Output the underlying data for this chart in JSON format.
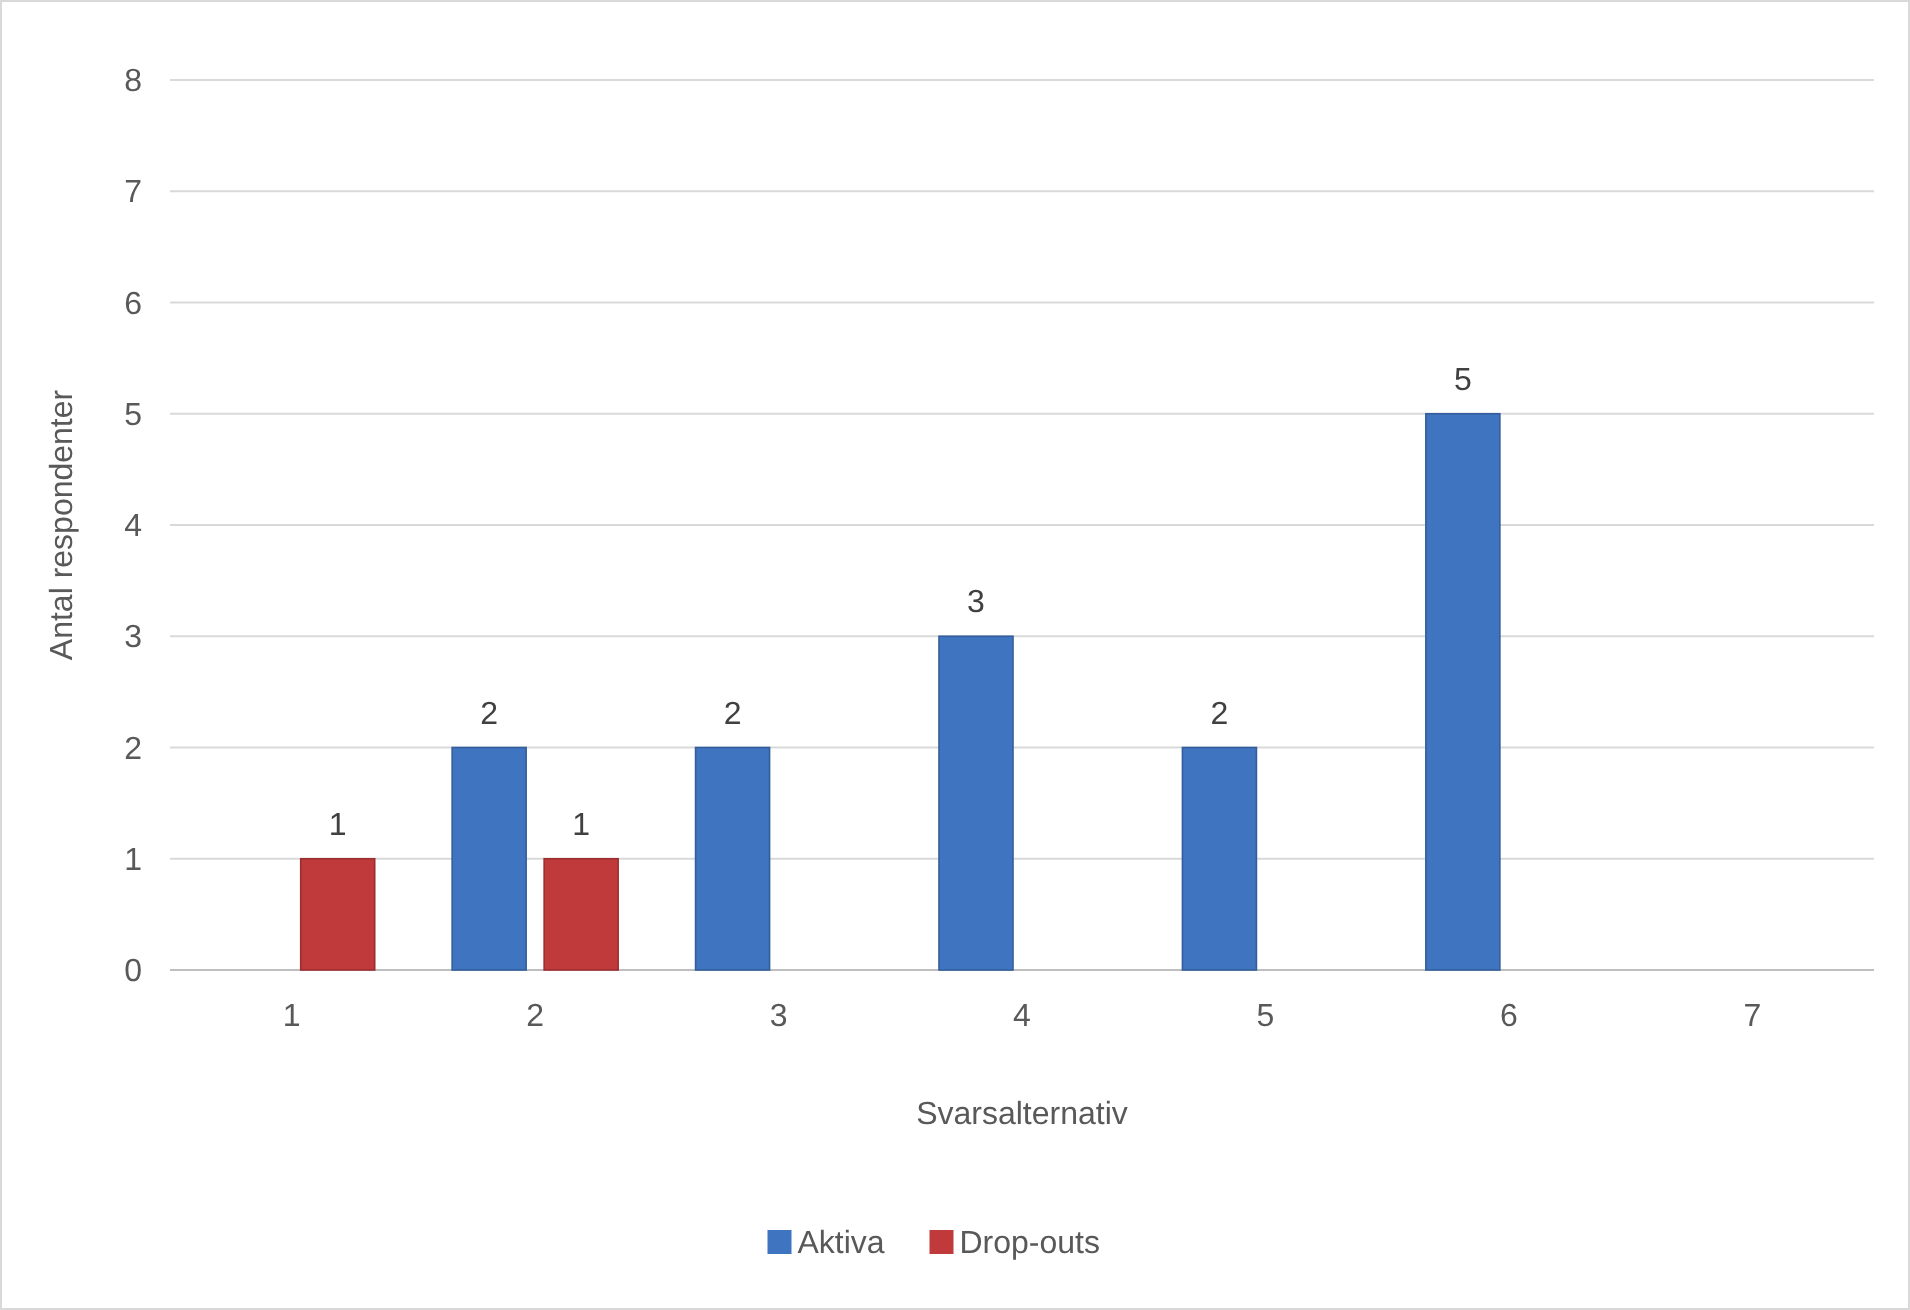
{
  "chart_data": {
    "type": "bar",
    "xlabel": "Svarsalternativ",
    "ylabel": "Antal respondenter",
    "categories": [
      "1",
      "2",
      "3",
      "4",
      "5",
      "6",
      "7"
    ],
    "series": [
      {
        "name": "Aktiva",
        "color": "#3f74c0",
        "values": [
          null,
          2,
          2,
          3,
          2,
          5,
          null
        ]
      },
      {
        "name": "Drop-outs",
        "color": "#c0393b",
        "values": [
          1,
          1,
          null,
          null,
          null,
          null,
          null
        ]
      }
    ],
    "ylim": [
      0,
      8
    ],
    "yticks": [
      0,
      1,
      2,
      3,
      4,
      5,
      6,
      7,
      8
    ],
    "grid": "y",
    "legend": "bottom",
    "data_labels": true
  }
}
